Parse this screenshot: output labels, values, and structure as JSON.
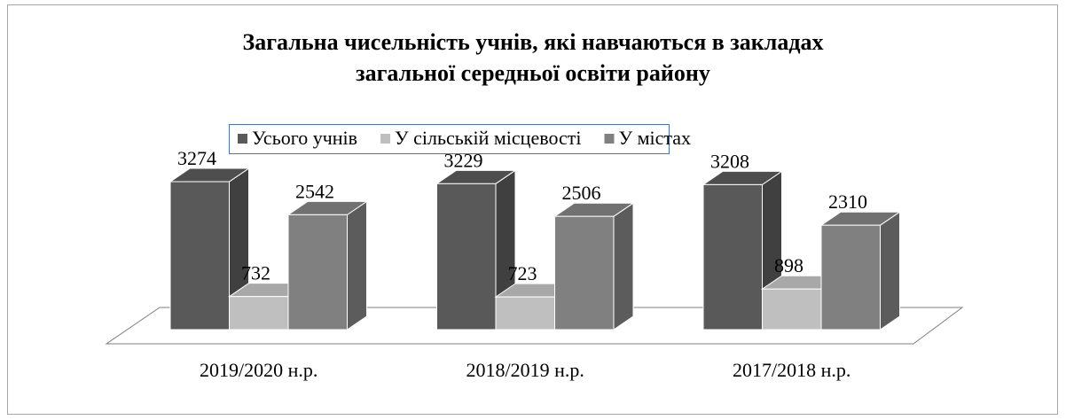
{
  "chart_data": {
    "type": "bar3d",
    "title": "Загальна чисельність учнів, які навчаються в закладах загальної середньої освіти району",
    "categories": [
      "2019/2020 н.р.",
      "2018/2019 н.р.",
      "2017/2018 н.р."
    ],
    "series": [
      {
        "name": "Усього учнів",
        "color": "#595959",
        "values": [
          3274,
          3229,
          3208
        ]
      },
      {
        "name": "У сільській місцевості",
        "color": "#bfbfbf",
        "values": [
          732,
          723,
          898
        ]
      },
      {
        "name": "У містах",
        "color": "#808080",
        "values": [
          2542,
          2506,
          2310
        ]
      }
    ],
    "legend": "top"
  }
}
